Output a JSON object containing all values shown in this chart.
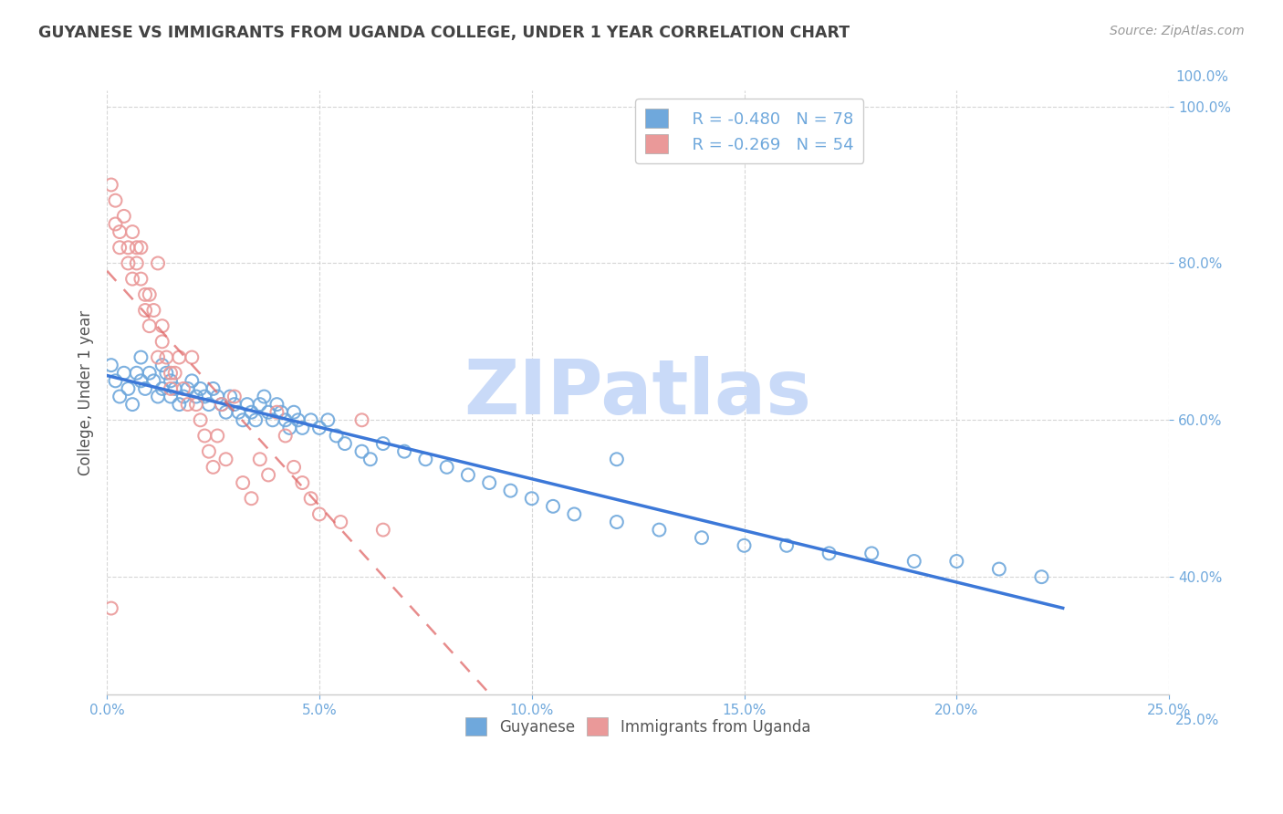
{
  "title": "GUYANESE VS IMMIGRANTS FROM UGANDA COLLEGE, UNDER 1 YEAR CORRELATION CHART",
  "source": "Source: ZipAtlas.com",
  "legend_label1": "Guyanese",
  "legend_label2": "Immigrants from Uganda",
  "ylabel_label": "College, Under 1 year",
  "R1": -0.48,
  "N1": 78,
  "R2": -0.269,
  "N2": 54,
  "color_blue": "#6fa8dc",
  "color_pink": "#ea9999",
  "color_blue_line": "#3c78d8",
  "color_pink_line": "#e06666",
  "color_watermark": "#c9daf8",
  "watermark_text": "ZIPatlas",
  "title_color": "#434343",
  "source_color": "#999999",
  "axis_label_color": "#555555",
  "right_tick_color": "#6fa8dc",
  "grid_color": "#cccccc",
  "xlim": [
    0.0,
    0.25
  ],
  "ylim": [
    0.25,
    1.02
  ],
  "x_ticks": [
    0.0,
    0.05,
    0.1,
    0.15,
    0.2,
    0.25
  ],
  "y_ticks": [
    0.4,
    0.6,
    0.8,
    1.0
  ],
  "blue_x": [
    0.001,
    0.002,
    0.003,
    0.004,
    0.005,
    0.006,
    0.007,
    0.008,
    0.008,
    0.009,
    0.01,
    0.011,
    0.012,
    0.013,
    0.013,
    0.014,
    0.015,
    0.015,
    0.016,
    0.017,
    0.018,
    0.019,
    0.02,
    0.021,
    0.022,
    0.023,
    0.024,
    0.025,
    0.026,
    0.027,
    0.028,
    0.029,
    0.03,
    0.031,
    0.032,
    0.033,
    0.034,
    0.035,
    0.036,
    0.037,
    0.038,
    0.039,
    0.04,
    0.041,
    0.042,
    0.043,
    0.044,
    0.045,
    0.046,
    0.048,
    0.05,
    0.052,
    0.054,
    0.056,
    0.06,
    0.062,
    0.065,
    0.07,
    0.075,
    0.08,
    0.085,
    0.09,
    0.095,
    0.1,
    0.105,
    0.11,
    0.12,
    0.13,
    0.14,
    0.15,
    0.16,
    0.17,
    0.18,
    0.19,
    0.2,
    0.21,
    0.22,
    0.12
  ],
  "blue_y": [
    0.67,
    0.65,
    0.63,
    0.66,
    0.64,
    0.62,
    0.66,
    0.68,
    0.65,
    0.64,
    0.66,
    0.65,
    0.63,
    0.64,
    0.67,
    0.66,
    0.65,
    0.63,
    0.64,
    0.62,
    0.63,
    0.64,
    0.65,
    0.63,
    0.64,
    0.63,
    0.62,
    0.64,
    0.63,
    0.62,
    0.61,
    0.63,
    0.62,
    0.61,
    0.6,
    0.62,
    0.61,
    0.6,
    0.62,
    0.63,
    0.61,
    0.6,
    0.62,
    0.61,
    0.6,
    0.59,
    0.61,
    0.6,
    0.59,
    0.6,
    0.59,
    0.6,
    0.58,
    0.57,
    0.56,
    0.55,
    0.57,
    0.56,
    0.55,
    0.54,
    0.53,
    0.52,
    0.51,
    0.5,
    0.49,
    0.48,
    0.47,
    0.46,
    0.45,
    0.44,
    0.44,
    0.43,
    0.43,
    0.42,
    0.42,
    0.41,
    0.4,
    0.55
  ],
  "pink_x": [
    0.001,
    0.002,
    0.002,
    0.003,
    0.003,
    0.004,
    0.005,
    0.005,
    0.006,
    0.006,
    0.007,
    0.007,
    0.008,
    0.008,
    0.009,
    0.009,
    0.01,
    0.01,
    0.011,
    0.012,
    0.012,
    0.013,
    0.013,
    0.014,
    0.015,
    0.015,
    0.016,
    0.017,
    0.018,
    0.019,
    0.02,
    0.021,
    0.022,
    0.023,
    0.024,
    0.025,
    0.026,
    0.027,
    0.028,
    0.03,
    0.032,
    0.034,
    0.036,
    0.038,
    0.04,
    0.042,
    0.044,
    0.046,
    0.048,
    0.05,
    0.055,
    0.06,
    0.065,
    0.001
  ],
  "pink_y": [
    0.9,
    0.88,
    0.85,
    0.84,
    0.82,
    0.86,
    0.8,
    0.82,
    0.78,
    0.84,
    0.82,
    0.8,
    0.82,
    0.78,
    0.76,
    0.74,
    0.72,
    0.76,
    0.74,
    0.8,
    0.68,
    0.72,
    0.7,
    0.68,
    0.66,
    0.64,
    0.66,
    0.68,
    0.64,
    0.62,
    0.68,
    0.62,
    0.6,
    0.58,
    0.56,
    0.54,
    0.58,
    0.62,
    0.55,
    0.63,
    0.52,
    0.5,
    0.55,
    0.53,
    0.61,
    0.58,
    0.54,
    0.52,
    0.5,
    0.48,
    0.47,
    0.6,
    0.46,
    0.36
  ]
}
